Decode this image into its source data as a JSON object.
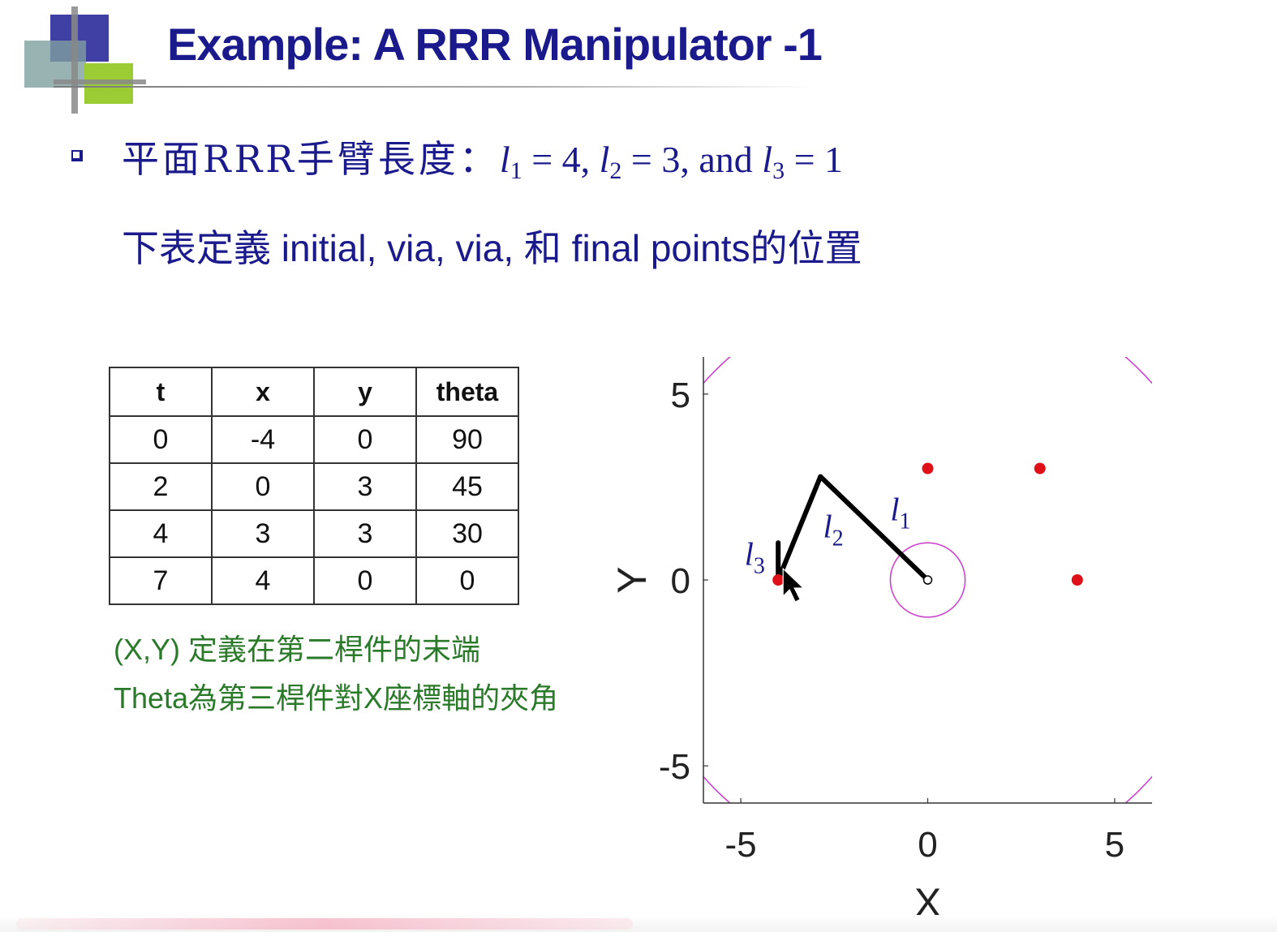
{
  "title": "Example: A RRR Manipulator -1",
  "bullet1": {
    "cjk": "平面RRR手臂長度：",
    "l1": "l",
    "l1_sub": "1",
    "eq1": " = 4, ",
    "l2": "l",
    "l2_sub": "2",
    "eq2": " = 3, and ",
    "l3": "l",
    "l3_sub": "3",
    "eq3": " = 1"
  },
  "line2": "下表定義 initial, via, via, 和 final points的位置",
  "table": {
    "headers": [
      "t",
      "x",
      "y",
      "theta"
    ],
    "rows": [
      [
        "0",
        "-4",
        "0",
        "90"
      ],
      [
        "2",
        "0",
        "3",
        "45"
      ],
      [
        "4",
        "3",
        "3",
        "30"
      ],
      [
        "7",
        "4",
        "0",
        "0"
      ]
    ]
  },
  "notes": [
    "(X,Y) 定義在第二桿件的末端",
    "Theta為第三桿件對X座標軸的夾角"
  ],
  "chart_data": {
    "type": "scatter",
    "xlabel": "X",
    "ylabel": "Y",
    "xlim": [
      -6,
      6
    ],
    "ylim": [
      -6,
      6
    ],
    "xticks": [
      "-5",
      "0",
      "5"
    ],
    "yticks": [
      "5",
      "0",
      "-5"
    ],
    "points": [
      {
        "x": -4,
        "y": 0
      },
      {
        "x": 0,
        "y": 3
      },
      {
        "x": 3,
        "y": 3
      },
      {
        "x": 4,
        "y": 0
      }
    ],
    "arm": {
      "base": [
        0,
        0
      ],
      "joint1": [
        -2.87,
        2.78
      ],
      "joint2": [
        -4,
        0
      ],
      "tip": [
        -4,
        1
      ]
    },
    "workspace_circles": [
      {
        "r": 8,
        "color": "#cc44cc"
      },
      {
        "r": 1,
        "color": "#cc44cc"
      }
    ],
    "link_labels": [
      {
        "main": "l",
        "sub": "1",
        "x": -1.0,
        "y": 1.6
      },
      {
        "main": "l",
        "sub": "2",
        "x": -2.8,
        "y": 1.15
      },
      {
        "main": "l",
        "sub": "3",
        "x": -4.9,
        "y": 0.4
      }
    ],
    "point_color": "#e0101a",
    "grid": false
  }
}
